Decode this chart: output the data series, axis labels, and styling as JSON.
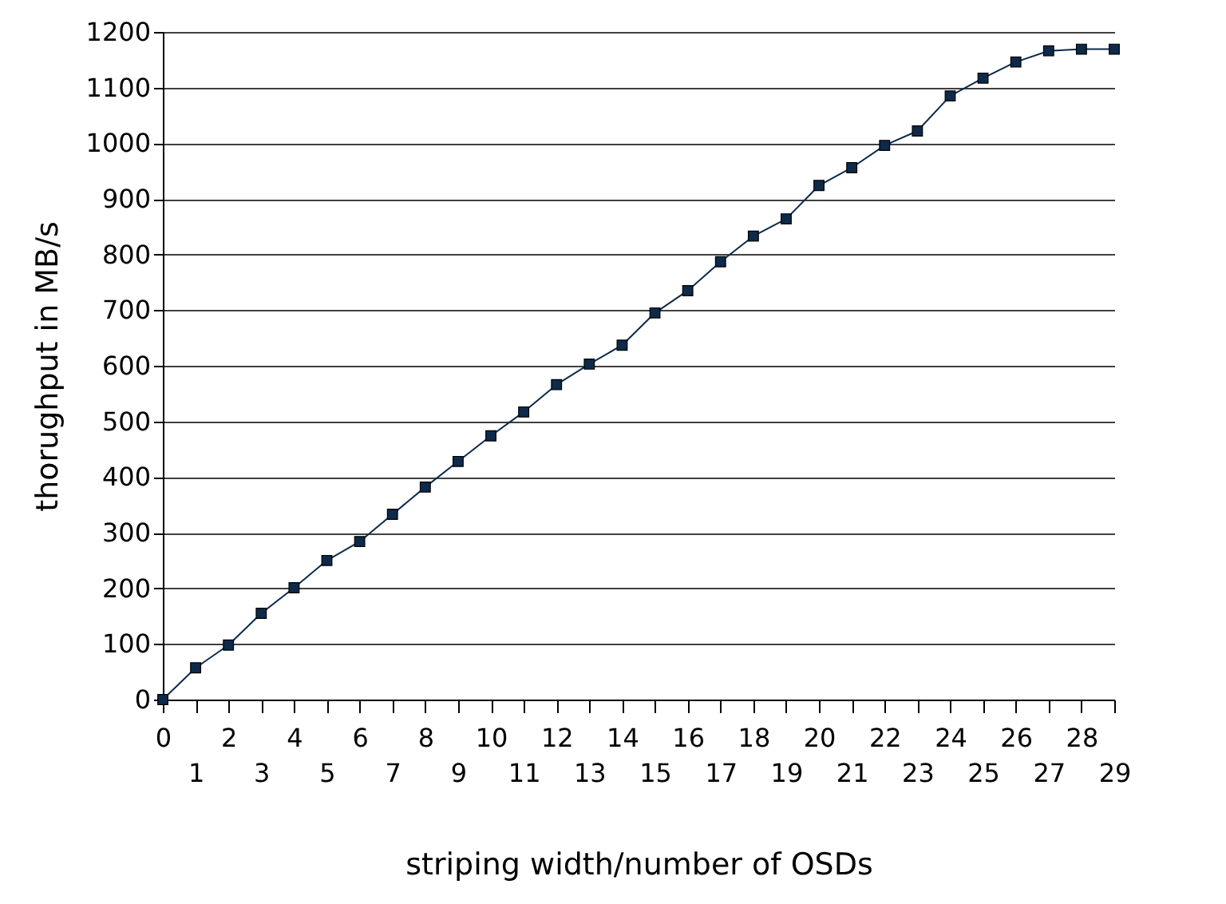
{
  "chart_data": {
    "type": "line",
    "xlabel": "striping width/number of OSDs",
    "ylabel": "thorughput in MB/s",
    "categories": [
      "0",
      "1",
      "2",
      "3",
      "4",
      "5",
      "6",
      "7",
      "8",
      "9",
      "10",
      "11",
      "12",
      "13",
      "14",
      "15",
      "16",
      "17",
      "18",
      "19",
      "20",
      "21",
      "22",
      "23",
      "24",
      "25",
      "26",
      "27",
      "28",
      "29"
    ],
    "series": [
      {
        "color": "#0d2a4a",
        "values": [
          0,
          57,
          98,
          155,
          201,
          250,
          284,
          333,
          382,
          428,
          474,
          517,
          566,
          603,
          637,
          695,
          735,
          787,
          833,
          864,
          924,
          956,
          996,
          1022,
          1085,
          1117,
          1146,
          1166,
          1169,
          1169
        ]
      }
    ],
    "ylim": [
      0,
      1200
    ],
    "yticks": [
      0,
      100,
      200,
      300,
      400,
      500,
      600,
      700,
      800,
      900,
      1000,
      1100,
      1200
    ],
    "grid": "y",
    "marker": "square",
    "line_style": "solid"
  }
}
